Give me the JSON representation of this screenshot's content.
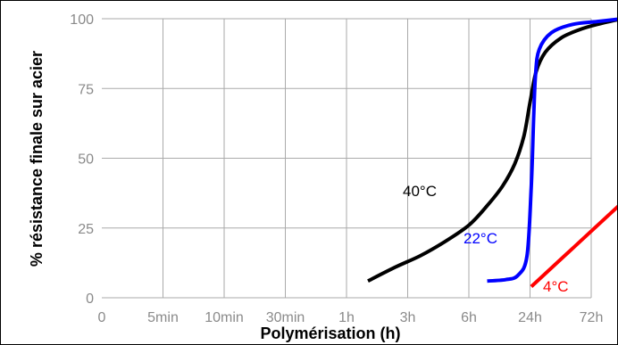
{
  "chart_data": {
    "type": "line",
    "xlabel": "Polymérisation (h)",
    "ylabel": "% résistance finale sur acier",
    "x_ticks": [
      "0",
      "5min",
      "10min",
      "30min",
      "1h",
      "3h",
      "6h",
      "24h",
      "72h"
    ],
    "y_ticks": [
      "0",
      "25",
      "50",
      "75",
      "100"
    ],
    "ylim": [
      0,
      100
    ],
    "grid": true,
    "series": [
      {
        "name": "40°C",
        "color": "#000000",
        "x_index": [
          4.35,
          4.8,
          5.2,
          5.6,
          6.0,
          6.3,
          6.55,
          6.75,
          6.9,
          7.0,
          7.1,
          7.25,
          7.5,
          7.8,
          8.1,
          8.5
        ],
        "values": [
          6,
          11,
          15,
          20,
          26,
          33,
          40,
          48,
          58,
          70,
          81,
          88,
          93,
          96,
          98,
          100
        ]
      },
      {
        "name": "22°C",
        "color": "#0000ff",
        "x_index": [
          6.3,
          6.6,
          6.8,
          6.95,
          7.02,
          7.06,
          7.09,
          7.15,
          7.35,
          7.7,
          8.1,
          8.5
        ],
        "values": [
          6,
          6.5,
          8,
          15,
          40,
          65,
          80,
          89,
          95,
          98,
          99,
          100
        ]
      },
      {
        "name": "4°C",
        "color": "#ff0000",
        "x_index": [
          7.02,
          8.5
        ],
        "values": [
          4,
          34
        ]
      }
    ]
  }
}
